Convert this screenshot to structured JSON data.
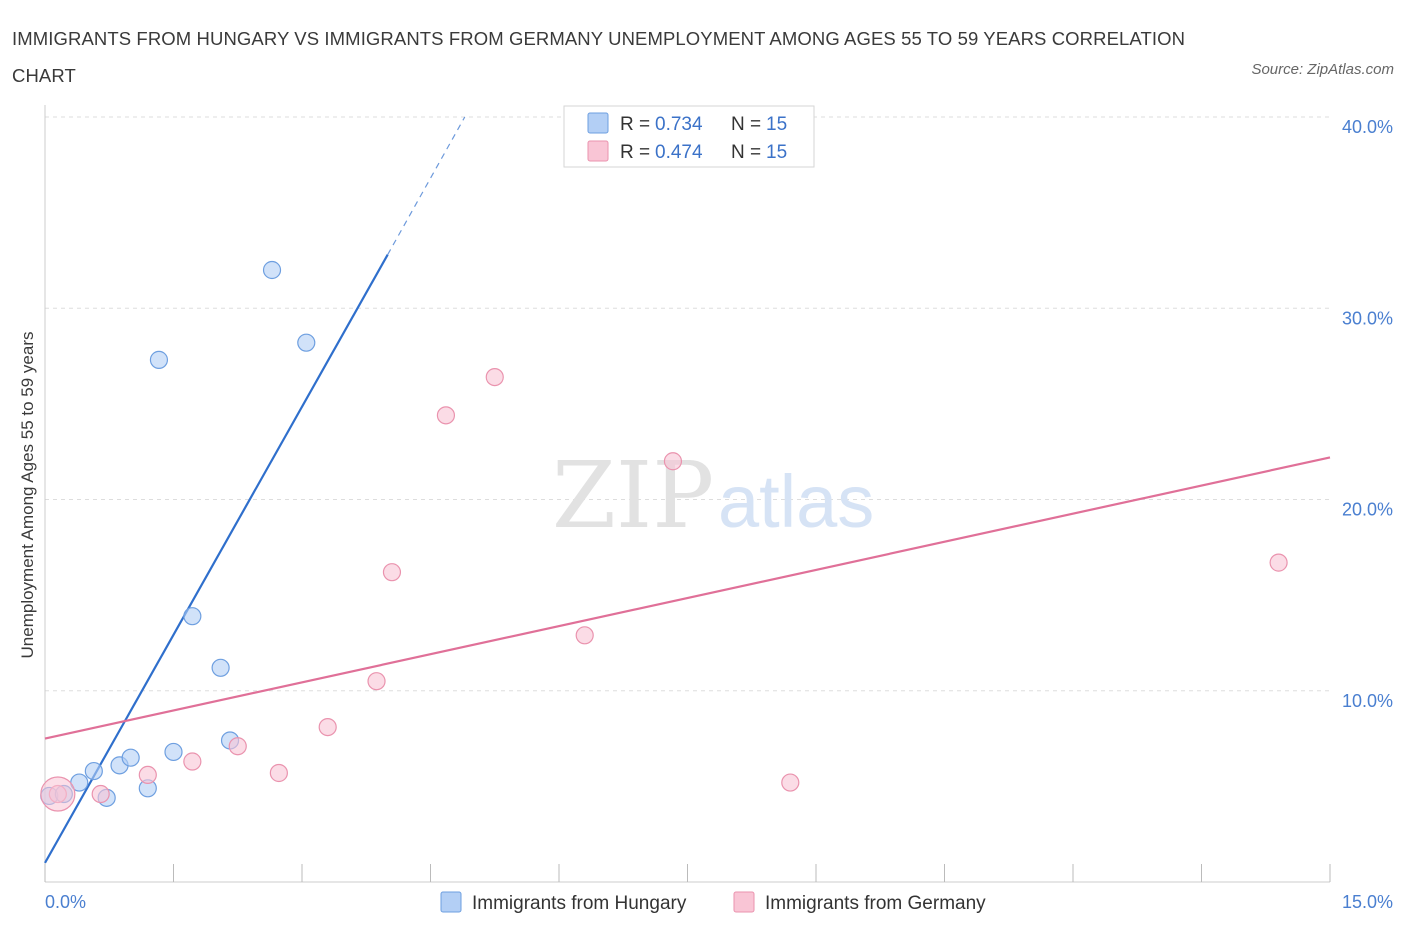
{
  "title": "IMMIGRANTS FROM HUNGARY VS IMMIGRANTS FROM GERMANY UNEMPLOYMENT AMONG AGES 55 TO 59 YEARS CORRELATION CHART",
  "source": "Source: ZipAtlas.com",
  "watermark": {
    "zip": "ZIP",
    "atlas": "atlas"
  },
  "colors": {
    "hungary_fill": "#b3cff5",
    "hungary_stroke": "#6e9fe0",
    "hungary_line": "#2f6fcc",
    "germany_fill": "#f9c5d5",
    "germany_stroke": "#ea93ae",
    "germany_line": "#e07098",
    "grid": "#dddddd",
    "tick_text": "#4a7fd0"
  },
  "stats_legend": [
    {
      "r_label": "R = ",
      "r_value": "0.734",
      "n_label": "N = ",
      "n_value": "15"
    },
    {
      "r_label": "R = ",
      "r_value": "0.474",
      "n_label": "N = ",
      "n_value": "15"
    }
  ],
  "chart_data": {
    "type": "scatter",
    "title": "IMMIGRANTS FROM HUNGARY VS IMMIGRANTS FROM GERMANY UNEMPLOYMENT AMONG AGES 55 TO 59 YEARS CORRELATION CHART",
    "xlabel": "",
    "ylabel": "Unemployment Among Ages 55 to 59 years",
    "xlim": [
      0,
      15
    ],
    "ylim": [
      0,
      40
    ],
    "x_tick_labels": [
      "0.0%",
      "15.0%"
    ],
    "y_ticks": [
      10,
      20,
      30,
      40
    ],
    "y_tick_labels": [
      "10.0%",
      "20.0%",
      "30.0%",
      "40.0%"
    ],
    "grid": true,
    "legend_position": "bottom",
    "series": [
      {
        "name": "Immigrants from Hungary",
        "R": 0.734,
        "N": 15,
        "points": [
          {
            "x": 0.05,
            "y": 4.5
          },
          {
            "x": 0.22,
            "y": 4.6
          },
          {
            "x": 0.4,
            "y": 5.2
          },
          {
            "x": 0.57,
            "y": 5.8
          },
          {
            "x": 0.72,
            "y": 4.4
          },
          {
            "x": 0.87,
            "y": 6.1
          },
          {
            "x": 1.0,
            "y": 6.5
          },
          {
            "x": 1.2,
            "y": 4.9
          },
          {
            "x": 1.33,
            "y": 27.3
          },
          {
            "x": 1.5,
            "y": 6.8
          },
          {
            "x": 1.72,
            "y": 13.9
          },
          {
            "x": 2.05,
            "y": 11.2
          },
          {
            "x": 2.16,
            "y": 7.4
          },
          {
            "x": 2.65,
            "y": 32.0
          },
          {
            "x": 3.05,
            "y": 28.2
          }
        ],
        "trend": {
          "x0": 0.0,
          "y0": 1.0,
          "x1": 4.0,
          "y1": 32.8,
          "dashed_to_x": 4.9,
          "dashed_to_y": 40.0
        }
      },
      {
        "name": "Immigrants from Germany",
        "R": 0.474,
        "N": 15,
        "points": [
          {
            "x": 0.15,
            "y": 4.6
          },
          {
            "x": 0.65,
            "y": 4.6
          },
          {
            "x": 1.2,
            "y": 5.6
          },
          {
            "x": 1.72,
            "y": 6.3
          },
          {
            "x": 2.25,
            "y": 7.1
          },
          {
            "x": 2.73,
            "y": 5.7
          },
          {
            "x": 3.3,
            "y": 8.1
          },
          {
            "x": 3.87,
            "y": 10.5
          },
          {
            "x": 4.05,
            "y": 16.2
          },
          {
            "x": 4.68,
            "y": 24.4
          },
          {
            "x": 5.25,
            "y": 26.4
          },
          {
            "x": 6.3,
            "y": 12.9
          },
          {
            "x": 7.33,
            "y": 22.0
          },
          {
            "x": 8.7,
            "y": 5.2
          },
          {
            "x": 14.4,
            "y": 16.7
          }
        ],
        "trend": {
          "x0": 0.0,
          "y0": 7.5,
          "x1": 15.0,
          "y1": 22.2
        }
      }
    ]
  }
}
